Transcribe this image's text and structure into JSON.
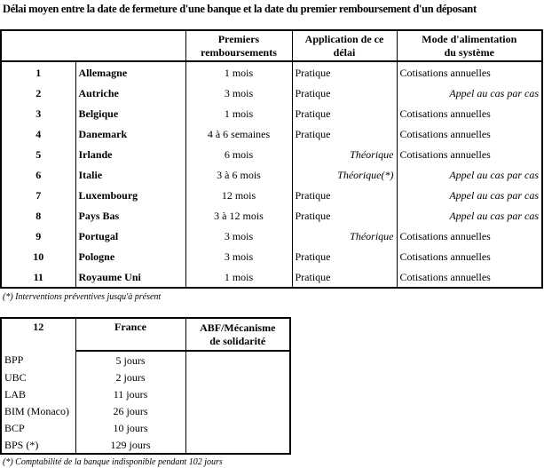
{
  "title": "Délai moyen entre la date de fermeture d'une banque et la date du premier remboursement d'un déposant",
  "table1": {
    "headers": [
      "",
      "Premiers remboursements",
      "Application de ce délai",
      "Mode d'alimentation du système"
    ],
    "header_lines": {
      "premiers": [
        "Premiers",
        "remboursements"
      ],
      "application": [
        "Application de ce",
        "délai"
      ],
      "mode": [
        "Mode d'alimentation",
        "du système"
      ]
    },
    "rows": [
      {
        "n": "1",
        "country": "Allemagne",
        "delay": "1 mois",
        "application": "Pratique",
        "mode": "Cotisations annuelles"
      },
      {
        "n": "2",
        "country": "Autriche",
        "delay": "3 mois",
        "application": "Pratique",
        "mode": "Appel au cas par cas"
      },
      {
        "n": "3",
        "country": "Belgique",
        "delay": "1 mois",
        "application": "Pratique",
        "mode": "Cotisations annuelles"
      },
      {
        "n": "4",
        "country": "Danemark",
        "delay": "4 à 6 semaines",
        "application": "Pratique",
        "mode": "Cotisations annuelles"
      },
      {
        "n": "5",
        "country": "Irlande",
        "delay": "6 mois",
        "application": "Théorique",
        "mode": "Cotisations annuelles"
      },
      {
        "n": "6",
        "country": "Italie",
        "delay": "3 à 6  mois",
        "application": "Théorique(*)",
        "mode": "Appel au cas par cas"
      },
      {
        "n": "7",
        "country": "Luxembourg",
        "delay": "12 mois",
        "application": "Pratique",
        "mode": "Appel au cas par cas"
      },
      {
        "n": "8",
        "country": "Pays Bas",
        "delay": "3 à 12 mois",
        "application": "Pratique",
        "mode": "Appel au cas par cas"
      },
      {
        "n": "9",
        "country": "Portugal",
        "delay": "3 mois",
        "application": "Théorique",
        "mode": "Cotisations annuelles"
      },
      {
        "n": "10",
        "country": "Pologne",
        "delay": "3 mois",
        "application": "Pratique",
        "mode": "Cotisations annuelles"
      },
      {
        "n": "11",
        "country": "Royaume Uni",
        "delay": "1 mois",
        "application": "Pratique",
        "mode": "Cotisations annuelles"
      }
    ],
    "footnote": "(*) Interventions préventives jusqu'à présent"
  },
  "table2": {
    "n": "12",
    "country": "France",
    "header": [
      "ABF/Mécanisme",
      "de solidarité"
    ],
    "rows": [
      {
        "bank": "BPP",
        "delay": "5 jours"
      },
      {
        "bank": "UBC",
        "delay": "2 jours"
      },
      {
        "bank": "LAB",
        "delay": "11 jours"
      },
      {
        "bank": "BIM (Monaco)",
        "delay": "26 jours"
      },
      {
        "bank": "BCP",
        "delay": "10 jours"
      },
      {
        "bank": "BPS (*)",
        "delay": "129 jours"
      }
    ],
    "footnote": "(*) Comptabilité de la banque indisponible pendant 102 jours"
  }
}
